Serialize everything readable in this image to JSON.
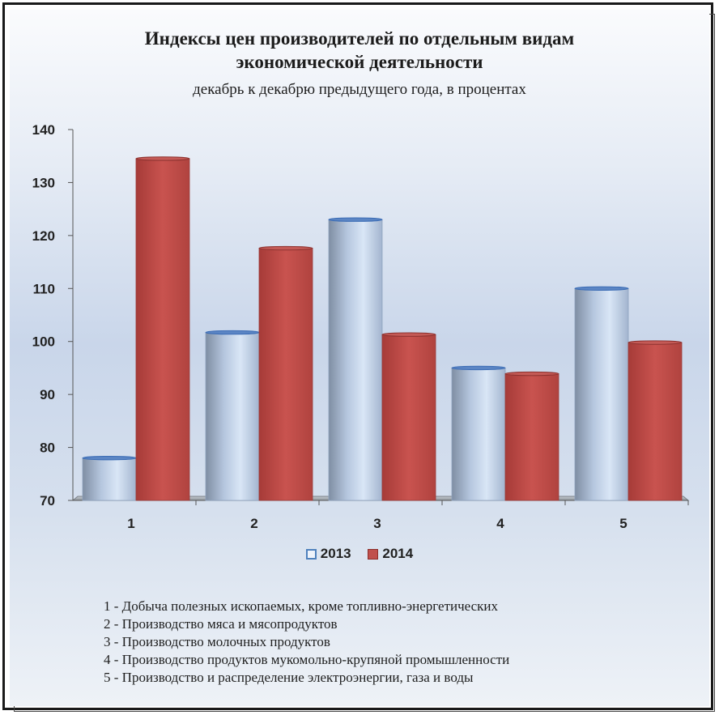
{
  "chart_data": {
    "type": "bar",
    "title": "Индексы цен производителей по отдельным видам экономической деятельности",
    "title_line1": "Индексы цен производителей по отдельным видам",
    "title_line2": "экономической деятельности",
    "subtitle": "декабрь к декабрю предыдущего года,  в процентах",
    "categories": [
      "1",
      "2",
      "3",
      "4",
      "5"
    ],
    "series": [
      {
        "name": "2013",
        "values": [
          78.0,
          101.7,
          123.0,
          95.0,
          110.0
        ],
        "color": "#b7c9e2"
      },
      {
        "name": "2014",
        "values": [
          134.5,
          117.6,
          101.3,
          93.9,
          99.8
        ],
        "color": "#c0504d"
      }
    ],
    "ylim": [
      70,
      140
    ],
    "yticks": [
      "70",
      "80",
      "90",
      "100",
      "110",
      "120",
      "130",
      "140"
    ],
    "xlabel": "",
    "ylabel": "",
    "grid": false,
    "legend_position": "bottom"
  },
  "notes": [
    "1 - Добыча полезных ископаемых, кроме топливно-энергетических",
    "2 - Производство мяса и мясопродуктов",
    "3 - Производство молочных продуктов",
    "4 - Производство продуктов мукомольно-крупяной промышленности",
    "5 - Производство и распределение электроэнергии, газа и воды"
  ]
}
